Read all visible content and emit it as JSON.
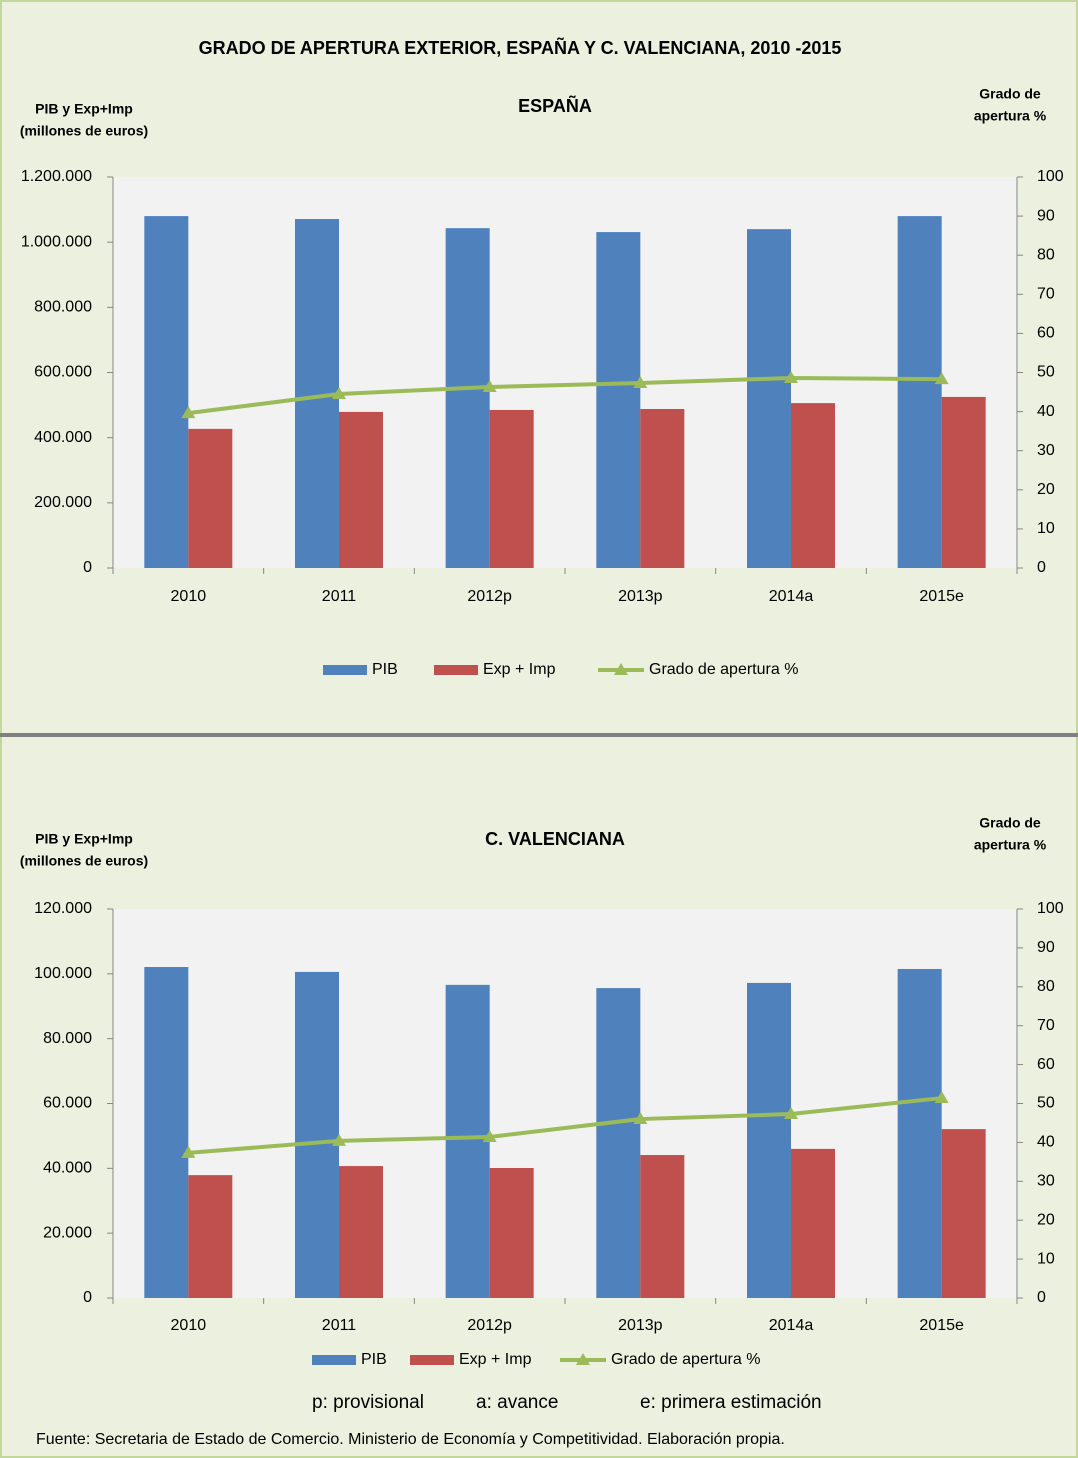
{
  "title": "GRADO DE APERTURA EXTERIOR, ESPAÑA Y C. VALENCIANA, 2010 -2015",
  "notes": [
    "p: provisional",
    "a: avance",
    "e: primera estimación"
  ],
  "source": "Fuente: Secretaria de Estado de Comercio. Ministerio de Economía y Competitividad. Elaboración propia.",
  "chart_data": [
    {
      "type": "bar",
      "title": "ESPAÑA",
      "ylabel": [
        "PIB y Exp+Imp",
        "(millones de euros)"
      ],
      "y2label": [
        "Grado de",
        "apertura %"
      ],
      "categories": [
        "2010",
        "2011",
        "2012p",
        "2013p",
        "2014a",
        "2015e"
      ],
      "series": [
        {
          "name": "PIB",
          "type": "bar",
          "color": "#4f81bd",
          "values": [
            1080000,
            1071000,
            1043000,
            1031000,
            1040000,
            1080000
          ]
        },
        {
          "name": "Exp + Imp",
          "type": "bar",
          "color": "#c0504d",
          "values": [
            427000,
            479000,
            485000,
            488000,
            506000,
            525000
          ]
        },
        {
          "name": "Grado de apertura %",
          "type": "line",
          "axis": "y2",
          "color": "#9bbb59",
          "values": [
            39.6,
            44.5,
            46.3,
            47.3,
            48.6,
            48.3
          ]
        }
      ],
      "ylim": [
        0,
        1200000
      ],
      "yticks": [
        0,
        {
          "value": 200000,
          "label": "200.000"
        },
        {
          "value": 400000,
          "label": "400.000"
        },
        {
          "value": 600000,
          "label": "600.000"
        },
        {
          "value": 800000,
          "label": "800.000"
        },
        {
          "value": 1000000,
          "label": "1.000.000"
        },
        {
          "value": 1200000,
          "label": "1.200.000"
        }
      ],
      "y2lim": [
        0,
        100
      ],
      "y2ticks": [
        0,
        10,
        20,
        30,
        40,
        50,
        60,
        70,
        80,
        90,
        100
      ],
      "grid": false
    },
    {
      "type": "bar",
      "title": "C. VALENCIANA",
      "ylabel": [
        "PIB y Exp+Imp",
        "(millones de euros)"
      ],
      "y2label": [
        "Grado de",
        "apertura %"
      ],
      "categories": [
        "2010",
        "2011",
        "2012p",
        "2013p",
        "2014a",
        "2015e"
      ],
      "series": [
        {
          "name": "PIB",
          "type": "bar",
          "color": "#4f81bd",
          "values": [
            102100,
            100600,
            96600,
            95600,
            97200,
            101500
          ]
        },
        {
          "name": "Exp + Imp",
          "type": "bar",
          "color": "#c0504d",
          "values": [
            37900,
            40700,
            40100,
            44100,
            46000,
            52100
          ]
        },
        {
          "name": "Grado de apertura %",
          "type": "line",
          "axis": "y2",
          "color": "#9bbb59",
          "values": [
            37.3,
            40.4,
            41.4,
            46.0,
            47.3,
            51.4
          ]
        }
      ],
      "ylim": [
        0,
        120000
      ],
      "yticks": [
        0,
        {
          "value": 20000,
          "label": "20.000"
        },
        {
          "value": 40000,
          "label": "40.000"
        },
        {
          "value": 60000,
          "label": "60.000"
        },
        {
          "value": 80000,
          "label": "80.000"
        },
        {
          "value": 100000,
          "label": "100.000"
        },
        {
          "value": 120000,
          "label": "120.000"
        }
      ],
      "y2lim": [
        0,
        100
      ],
      "y2ticks": [
        0,
        10,
        20,
        30,
        40,
        50,
        60,
        70,
        80,
        90,
        100
      ],
      "grid": false
    }
  ]
}
